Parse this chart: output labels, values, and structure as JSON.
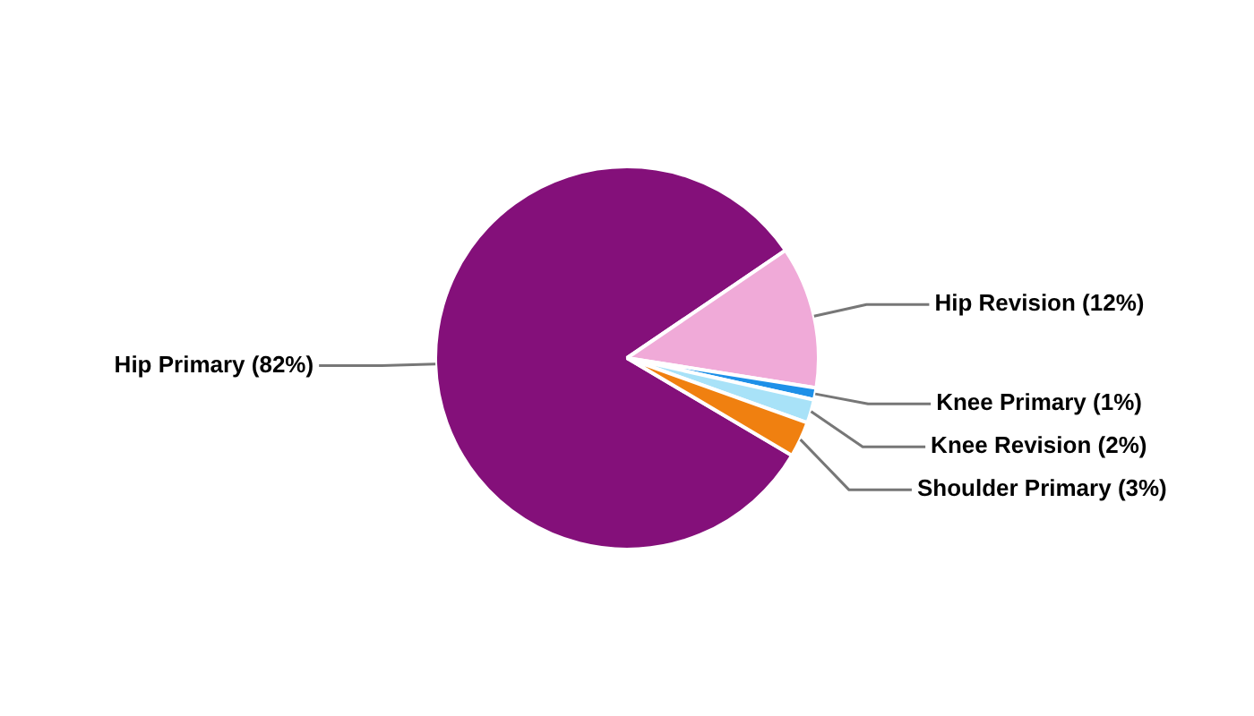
{
  "chart_data": {
    "type": "pie",
    "categories": [
      "Hip Primary (82%)",
      "Hip Revision (12%)",
      "Knee Primary (1%)",
      "Knee Revision (2%)",
      "Shoulder Primary (3%)"
    ],
    "values": [
      82,
      12,
      1,
      2,
      3
    ],
    "colors": [
      "#84107a",
      "#f0aad8",
      "#1e90e8",
      "#a8e2f8",
      "#f08010"
    ],
    "legend": false
  }
}
